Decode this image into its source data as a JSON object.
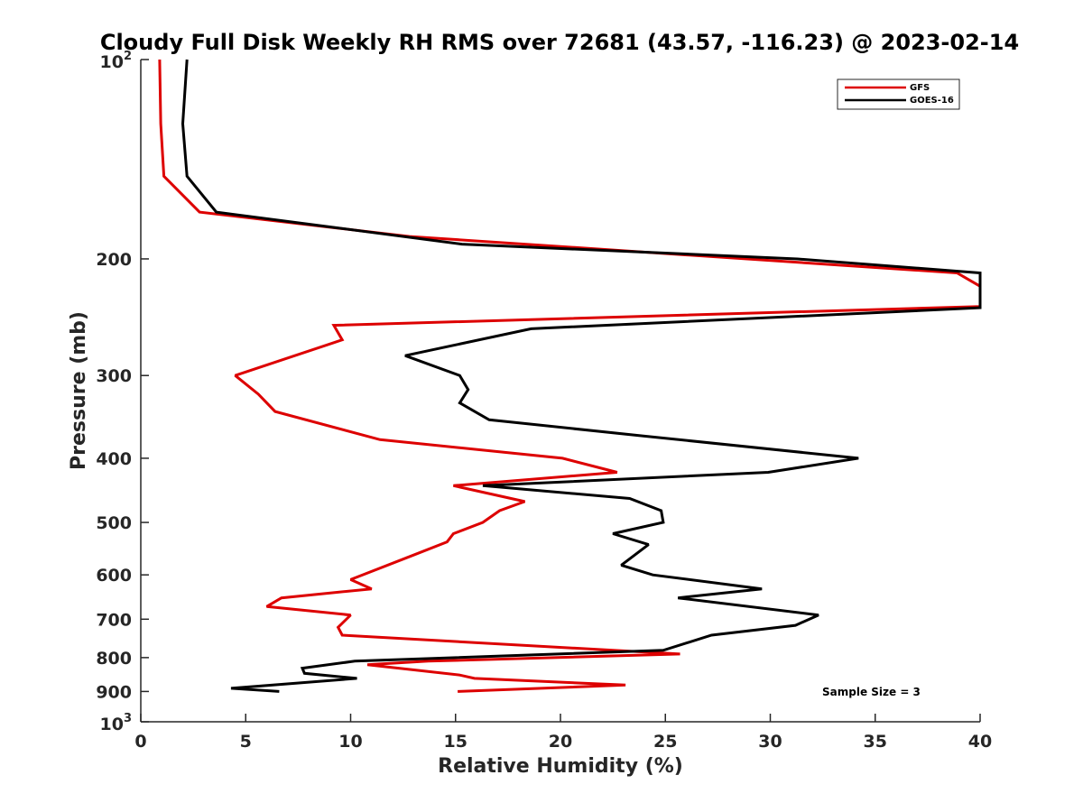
{
  "chart_data": {
    "type": "line",
    "title": "Cloudy Full Disk Weekly RH RMS over 72681 (43.57, -116.23) @ 2023-02-14",
    "xlabel": "Relative Humidity (%)",
    "ylabel": "Pressure (mb)",
    "xlim": [
      0,
      40
    ],
    "ylim": [
      100,
      1000
    ],
    "y_scale": "log",
    "y_reversed": true,
    "grid": false,
    "legend_position": "top-right",
    "x_ticks": [
      "0",
      "5",
      "10",
      "15",
      "20",
      "25",
      "30",
      "35",
      "40"
    ],
    "y_ticks": [
      {
        "value": 200,
        "label": "200"
      },
      {
        "value": 300,
        "label": "300"
      },
      {
        "value": 400,
        "label": "400"
      },
      {
        "value": 500,
        "label": "500"
      },
      {
        "value": 600,
        "label": "600"
      },
      {
        "value": 700,
        "label": "700"
      },
      {
        "value": 800,
        "label": "800"
      },
      {
        "value": 900,
        "label": "900"
      }
    ],
    "y_end_labels": [
      {
        "value": 100,
        "base": "10",
        "exp": "2"
      },
      {
        "value": 1000,
        "base": "10",
        "exp": "3"
      }
    ],
    "annotation": "Sample Size = 3",
    "series": [
      {
        "name": "GFS",
        "color": "#dd0000",
        "points": [
          [
            0.9,
            100
          ],
          [
            0.95,
            125
          ],
          [
            1.1,
            150
          ],
          [
            2.8,
            170
          ],
          [
            12.8,
            185
          ],
          [
            38.9,
            210
          ],
          [
            40,
            220
          ],
          [
            40,
            235
          ],
          [
            40,
            236
          ],
          [
            9.2,
            252
          ],
          [
            9.6,
            265
          ],
          [
            4.5,
            300
          ],
          [
            5.6,
            320
          ],
          [
            6.4,
            340
          ],
          [
            11.4,
            375
          ],
          [
            20.1,
            400
          ],
          [
            22.7,
            420
          ],
          [
            14.9,
            440
          ],
          [
            18.3,
            465
          ],
          [
            17.1,
            480
          ],
          [
            16.3,
            500
          ],
          [
            14.9,
            520
          ],
          [
            14.6,
            535
          ],
          [
            13.0,
            560
          ],
          [
            10.0,
            610
          ],
          [
            11.0,
            630
          ],
          [
            6.7,
            650
          ],
          [
            6.0,
            670
          ],
          [
            10.0,
            690
          ],
          [
            9.4,
            720
          ],
          [
            9.6,
            740
          ],
          [
            25.7,
            790
          ],
          [
            13.7,
            810
          ],
          [
            10.8,
            820
          ],
          [
            15.2,
            850
          ],
          [
            15.9,
            860
          ],
          [
            23.1,
            880
          ],
          [
            15.1,
            900
          ]
        ]
      },
      {
        "name": "GOES-16",
        "color": "#000000",
        "points": [
          [
            2.2,
            100
          ],
          [
            2.0,
            125
          ],
          [
            2.2,
            150
          ],
          [
            3.6,
            170
          ],
          [
            15.3,
            190
          ],
          [
            31.3,
            200
          ],
          [
            40,
            210
          ],
          [
            40,
            235
          ],
          [
            40,
            237
          ],
          [
            18.6,
            255
          ],
          [
            12.6,
            280
          ],
          [
            15.2,
            300
          ],
          [
            15.6,
            315
          ],
          [
            15.2,
            330
          ],
          [
            16.6,
            350
          ],
          [
            23.9,
            370
          ],
          [
            34.2,
            400
          ],
          [
            29.9,
            420
          ],
          [
            16.3,
            440
          ],
          [
            23.3,
            460
          ],
          [
            24.8,
            480
          ],
          [
            24.9,
            500
          ],
          [
            22.5,
            520
          ],
          [
            24.2,
            540
          ],
          [
            22.9,
            580
          ],
          [
            24.4,
            600
          ],
          [
            29.6,
            630
          ],
          [
            25.6,
            650
          ],
          [
            32.3,
            690
          ],
          [
            31.2,
            715
          ],
          [
            27.2,
            740
          ],
          [
            24.9,
            780
          ],
          [
            10.2,
            810
          ],
          [
            7.7,
            830
          ],
          [
            7.8,
            845
          ],
          [
            10.3,
            860
          ],
          [
            4.3,
            890
          ],
          [
            6.6,
            900
          ]
        ]
      }
    ]
  }
}
